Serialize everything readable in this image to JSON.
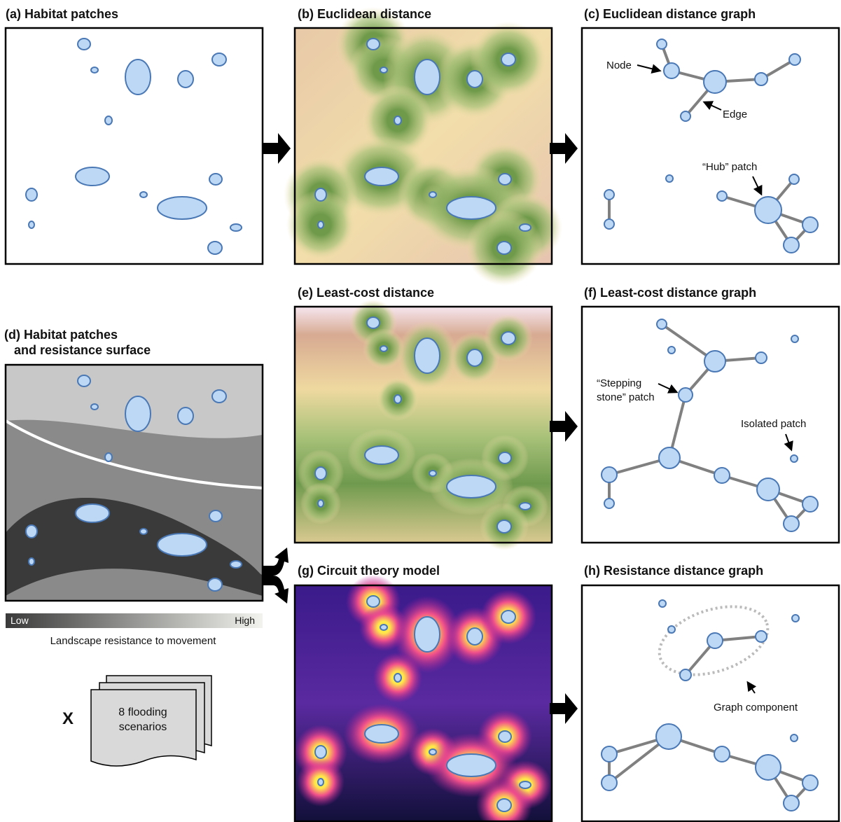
{
  "panels": [
    {
      "label": "(a)",
      "title": "Habitat patches"
    },
    {
      "label": "(b)",
      "title": "Euclidean distance"
    },
    {
      "label": "(c)",
      "title": "Euclidean distance graph"
    },
    {
      "label": "(d)",
      "title": [
        "Habitat patches",
        "and resistance surface"
      ]
    },
    {
      "label": "(e)",
      "title": "Least-cost distance"
    },
    {
      "label": "(f)",
      "title": "Least-cost distance graph"
    },
    {
      "label": "(g)",
      "title": "Circuit theory model"
    },
    {
      "label": "(h)",
      "title": "Resistance distance graph"
    }
  ],
  "annotations": {
    "node": "Node",
    "edge": "Edge",
    "hub": "“Hub” patch",
    "stepping_stone": [
      "“Stepping",
      "stone” patch"
    ],
    "isolated": "Isolated patch",
    "graph_component": "Graph component"
  },
  "legend": {
    "low": "Low",
    "high": "High",
    "caption": "Landscape resistance to movement"
  },
  "multiplier": "X",
  "scenarios": [
    "8 flooding",
    "scenarios"
  ]
}
